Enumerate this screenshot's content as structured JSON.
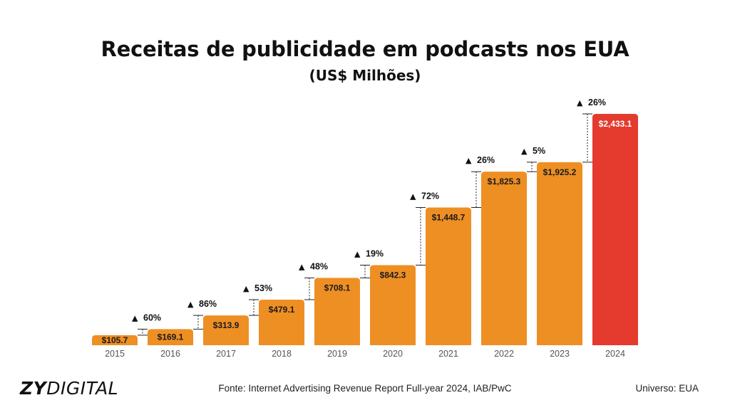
{
  "header": {
    "title": "Receitas de publicidade em podcasts nos EUA",
    "subtitle": "(US$ Milhões)"
  },
  "footer": {
    "logo_bold": "ZY",
    "logo_light": "DIGITAL",
    "source": "Fonte: Internet Advertising Revenue Report Full-year 2024, IAB/PwC",
    "universe": "Universo: EUA"
  },
  "colors": {
    "bar": "#EE8F24",
    "highlight_bar": "#E53A2E",
    "text": "#1a1a1a",
    "axis_label": "#555555"
  },
  "chart_data": {
    "type": "bar",
    "title": "Receitas de publicidade em podcasts nos EUA",
    "subtitle": "(US$ Milhões)",
    "xlabel": "",
    "ylabel": "",
    "categories": [
      "2015",
      "2016",
      "2017",
      "2018",
      "2019",
      "2020",
      "2021",
      "2022",
      "2023",
      "2024"
    ],
    "values": [
      105.7,
      169.1,
      313.9,
      479.1,
      708.1,
      842.3,
      1448.7,
      1825.3,
      1925.2,
      2433.1
    ],
    "value_labels": [
      "$105.7",
      "$169.1",
      "$313.9",
      "$479.1",
      "$708.1",
      "$842.3",
      "$1,448.7",
      "$1,825.3",
      "$1,925.2",
      "$2,433.1"
    ],
    "growth_labels": [
      "60%",
      "86%",
      "53%",
      "48%",
      "19%",
      "72%",
      "26%",
      "5%",
      "26%"
    ],
    "growth_marker": "▲",
    "highlight_category": "2024",
    "ylim": [
      0,
      2433.1
    ],
    "grid": false,
    "legend": "none"
  }
}
